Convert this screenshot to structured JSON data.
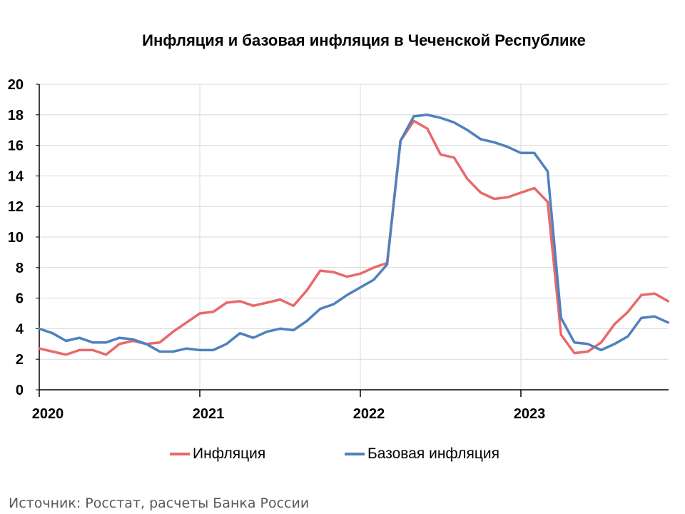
{
  "chart_data": {
    "type": "line",
    "title": "Инфляция и базовая инфляция в Чеченской Республике",
    "xlabel": "",
    "ylabel": "",
    "ylim": [
      0,
      20
    ],
    "yticks": [
      "0",
      "2",
      "4",
      "6",
      "8",
      "10",
      "12",
      "14",
      "16",
      "18",
      "20"
    ],
    "xticks": [
      "2020",
      "2021",
      "2022",
      "2023"
    ],
    "grid": true,
    "legend_position": "bottom",
    "x": [
      "2020-01",
      "2020-02",
      "2020-03",
      "2020-04",
      "2020-05",
      "2020-06",
      "2020-07",
      "2020-08",
      "2020-09",
      "2020-10",
      "2020-11",
      "2020-12",
      "2021-01",
      "2021-02",
      "2021-03",
      "2021-04",
      "2021-05",
      "2021-06",
      "2021-07",
      "2021-08",
      "2021-09",
      "2021-10",
      "2021-11",
      "2021-12",
      "2022-01",
      "2022-02",
      "2022-03",
      "2022-04",
      "2022-05",
      "2022-06",
      "2022-07",
      "2022-08",
      "2022-09",
      "2022-10",
      "2022-11",
      "2022-12",
      "2023-01",
      "2023-02",
      "2023-03",
      "2023-04",
      "2023-05",
      "2023-06",
      "2023-07",
      "2023-08",
      "2023-09",
      "2023-10",
      "2023-11",
      "2023-12"
    ],
    "series": [
      {
        "name": "Инфляция",
        "color": "#E8696B",
        "values": [
          2.7,
          2.5,
          2.3,
          2.6,
          2.6,
          2.3,
          3.0,
          3.2,
          3.0,
          3.1,
          3.8,
          4.4,
          5.0,
          5.1,
          5.7,
          5.8,
          5.5,
          5.7,
          5.9,
          5.5,
          6.5,
          7.8,
          7.7,
          7.4,
          7.6,
          8.0,
          8.3,
          16.3,
          17.6,
          17.1,
          15.4,
          15.2,
          13.8,
          12.9,
          12.5,
          12.6,
          12.9,
          13.2,
          12.3,
          3.6,
          2.4,
          2.5,
          3.1,
          4.3,
          5.1,
          6.2,
          6.3,
          5.8
        ]
      },
      {
        "name": "Базовая инфляция",
        "color": "#4F81BD",
        "values": [
          4.0,
          3.7,
          3.2,
          3.4,
          3.1,
          3.1,
          3.4,
          3.3,
          3.0,
          2.5,
          2.5,
          2.7,
          2.6,
          2.6,
          3.0,
          3.7,
          3.4,
          3.8,
          4.0,
          3.9,
          4.5,
          5.3,
          5.6,
          6.2,
          6.7,
          7.2,
          8.2,
          16.3,
          17.9,
          18.0,
          17.8,
          17.5,
          17.0,
          16.4,
          16.2,
          15.9,
          15.5,
          15.5,
          14.3,
          4.7,
          3.1,
          3.0,
          2.6,
          3.0,
          3.5,
          4.7,
          4.8,
          4.4
        ]
      }
    ],
    "source": "Источник: Росстат, расчеты Банка России"
  }
}
